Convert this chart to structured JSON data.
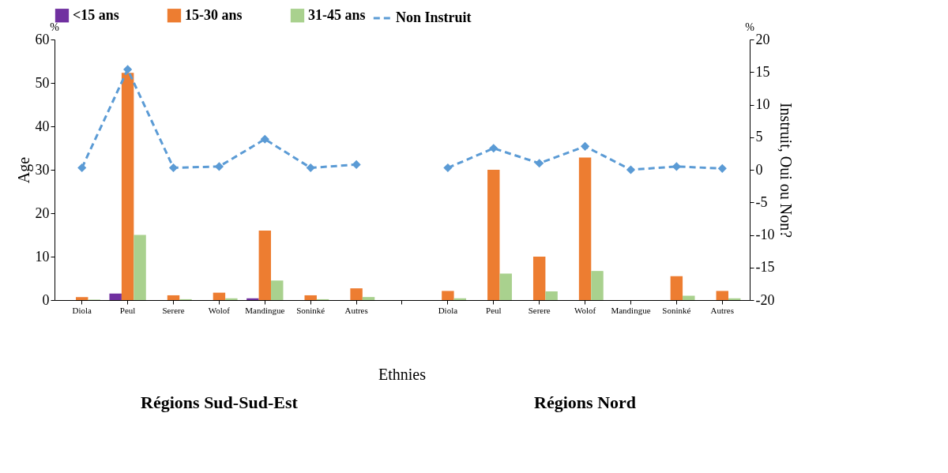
{
  "chart_data": {
    "type": "bar",
    "categories": [
      "Diola",
      "Peul",
      "Serere",
      "Wolof",
      "Mandingue",
      "Soninké",
      "Autres",
      null,
      "Diola",
      "Peul",
      "Serere",
      "Wolof",
      "Mandingue",
      "Soninké",
      "Autres"
    ],
    "series": [
      {
        "name": "<15 ans",
        "color": "#7030a0",
        "values": [
          0,
          1.5,
          0,
          0,
          0.4,
          0,
          0,
          null,
          0,
          0,
          0,
          0,
          0,
          0,
          0
        ]
      },
      {
        "name": "15-30 ans",
        "color": "#ed7d31",
        "values": [
          0.7,
          52.3,
          1.1,
          1.7,
          16,
          1.1,
          2.7,
          null,
          2.1,
          30,
          10,
          32.8,
          0,
          5.5,
          2.1
        ]
      },
      {
        "name": "31-45 ans",
        "color": "#a9d18e",
        "values": [
          0.1,
          15,
          0.2,
          0.4,
          4.5,
          0.2,
          0.7,
          null,
          0.4,
          6.1,
          2,
          6.7,
          0,
          1,
          0.4
        ]
      },
      {
        "name": "Non Instruit",
        "type": "line",
        "axis": "y2",
        "color": "#5b9bd5",
        "marker": "diamond",
        "line_style": "dashed",
        "values": [
          0.3,
          15.4,
          0.3,
          0.5,
          4.7,
          0.3,
          0.8,
          null,
          0.3,
          3.3,
          1.0,
          3.6,
          0,
          0.5,
          0.2
        ]
      }
    ],
    "xlabel": "Ethnies",
    "ylabel": "Age",
    "y2label": "Instruit, Oui ou Non?",
    "ylim": [
      0,
      60
    ],
    "yticks": [
      0,
      10,
      20,
      30,
      40,
      50,
      60
    ],
    "y2lim": [
      -20,
      20
    ],
    "y2ticks": [
      -20,
      -15,
      -10,
      -5,
      0,
      5,
      10,
      15,
      20
    ],
    "annotations": [
      "%",
      "%",
      "Régions Sud-Sud-Est",
      "Régions Nord"
    ],
    "legend": "top",
    "grid": false
  }
}
